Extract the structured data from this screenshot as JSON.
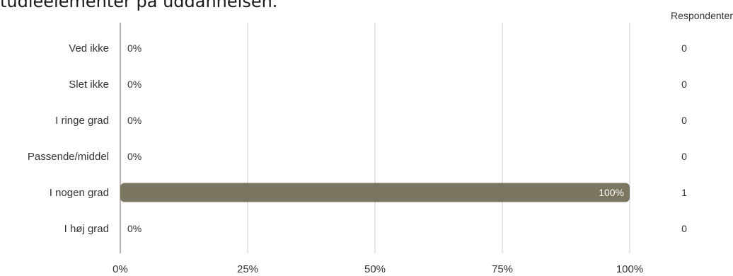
{
  "chart_data": {
    "type": "bar",
    "orientation": "horizontal",
    "title": "tudieelementer på uddannelsen.",
    "categories": [
      "Ved ikke",
      "Slet ikke",
      "I ringe grad",
      "Passende/middel",
      "I nogen grad",
      "I høj grad"
    ],
    "values": [
      0,
      0,
      0,
      0,
      100,
      0
    ],
    "value_labels": [
      "0%",
      "0%",
      "0%",
      "0%",
      "100%",
      "0%"
    ],
    "respondents_header": "Respondenter",
    "respondents": [
      "0",
      "0",
      "0",
      "0",
      "1",
      "0"
    ],
    "x_ticks": [
      "0%",
      "25%",
      "50%",
      "75%",
      "100%"
    ],
    "xlim": [
      0,
      100
    ],
    "grid": true,
    "bar_color": "#7a765f",
    "axis_color": "#aaaaaa"
  }
}
